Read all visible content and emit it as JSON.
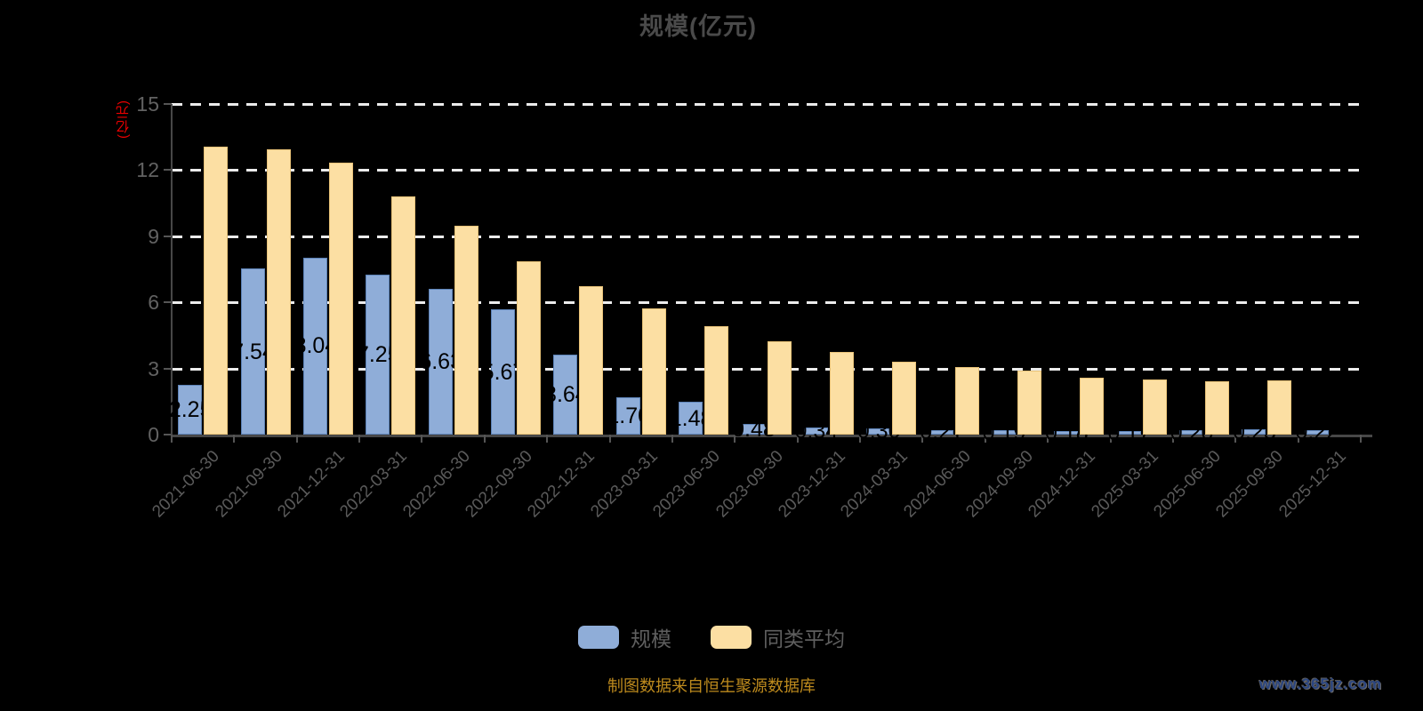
{
  "title": "规模(亿元)",
  "y_axis_unit": "(亿元)",
  "footer_note": "制图数据来自恒生聚源数据库",
  "watermark": "www.365jz.com",
  "legend": {
    "items": [
      {
        "label": "规模",
        "color": "#8FADD8"
      },
      {
        "label": "同类平均",
        "color": "#FCDFA3"
      }
    ]
  },
  "colors": {
    "background": "#000000",
    "title_text": "#4a4a4a",
    "axis_text": "#626262",
    "axis_line": "#474747",
    "gridline": "#ececec",
    "y_unit_text": "#f00000",
    "bar_scale": "#8FADD8",
    "bar_peer_average": "#FCDFA3",
    "data_label": "#000000",
    "footer_text": "#bd8a1d",
    "watermark_text": "#2a4580"
  },
  "chart_data": {
    "type": "bar",
    "title": "规模(亿元)",
    "xlabel": "",
    "ylabel": "(亿元)",
    "ylim": [
      0,
      15
    ],
    "yticks": [
      0,
      3,
      6,
      9,
      12,
      15
    ],
    "grid": "horizontal-dashed",
    "legend_position": "bottom",
    "categories": [
      "2021-06-30",
      "2021-09-30",
      "2021-12-31",
      "2022-03-31",
      "2022-06-30",
      "2022-09-30",
      "2022-12-31",
      "2023-03-31",
      "2023-06-30",
      "2023-09-30",
      "2023-12-31",
      "2024-03-31",
      "2024-06-30",
      "2024-09-30",
      "2024-12-31",
      "2025-03-31",
      "2025-06-30",
      "2025-09-30",
      "2025-12-31"
    ],
    "series": [
      {
        "name": "规模",
        "labels_visible": true,
        "values": [
          2.25,
          7.54,
          8.04,
          7.25,
          6.63,
          5.67,
          3.64,
          1.7,
          1.48,
          0.48,
          0.34,
          0.3,
          0.21,
          0.19,
          0.18,
          0.17,
          0.2,
          0.23,
          0.22
        ]
      },
      {
        "name": "同类平均",
        "labels_visible": false,
        "values": [
          13.06,
          12.94,
          12.34,
          10.81,
          9.48,
          7.86,
          6.73,
          5.73,
          4.92,
          4.23,
          3.75,
          3.31,
          3.06,
          2.9,
          2.58,
          2.5,
          2.42,
          2.46,
          0
        ]
      }
    ]
  }
}
